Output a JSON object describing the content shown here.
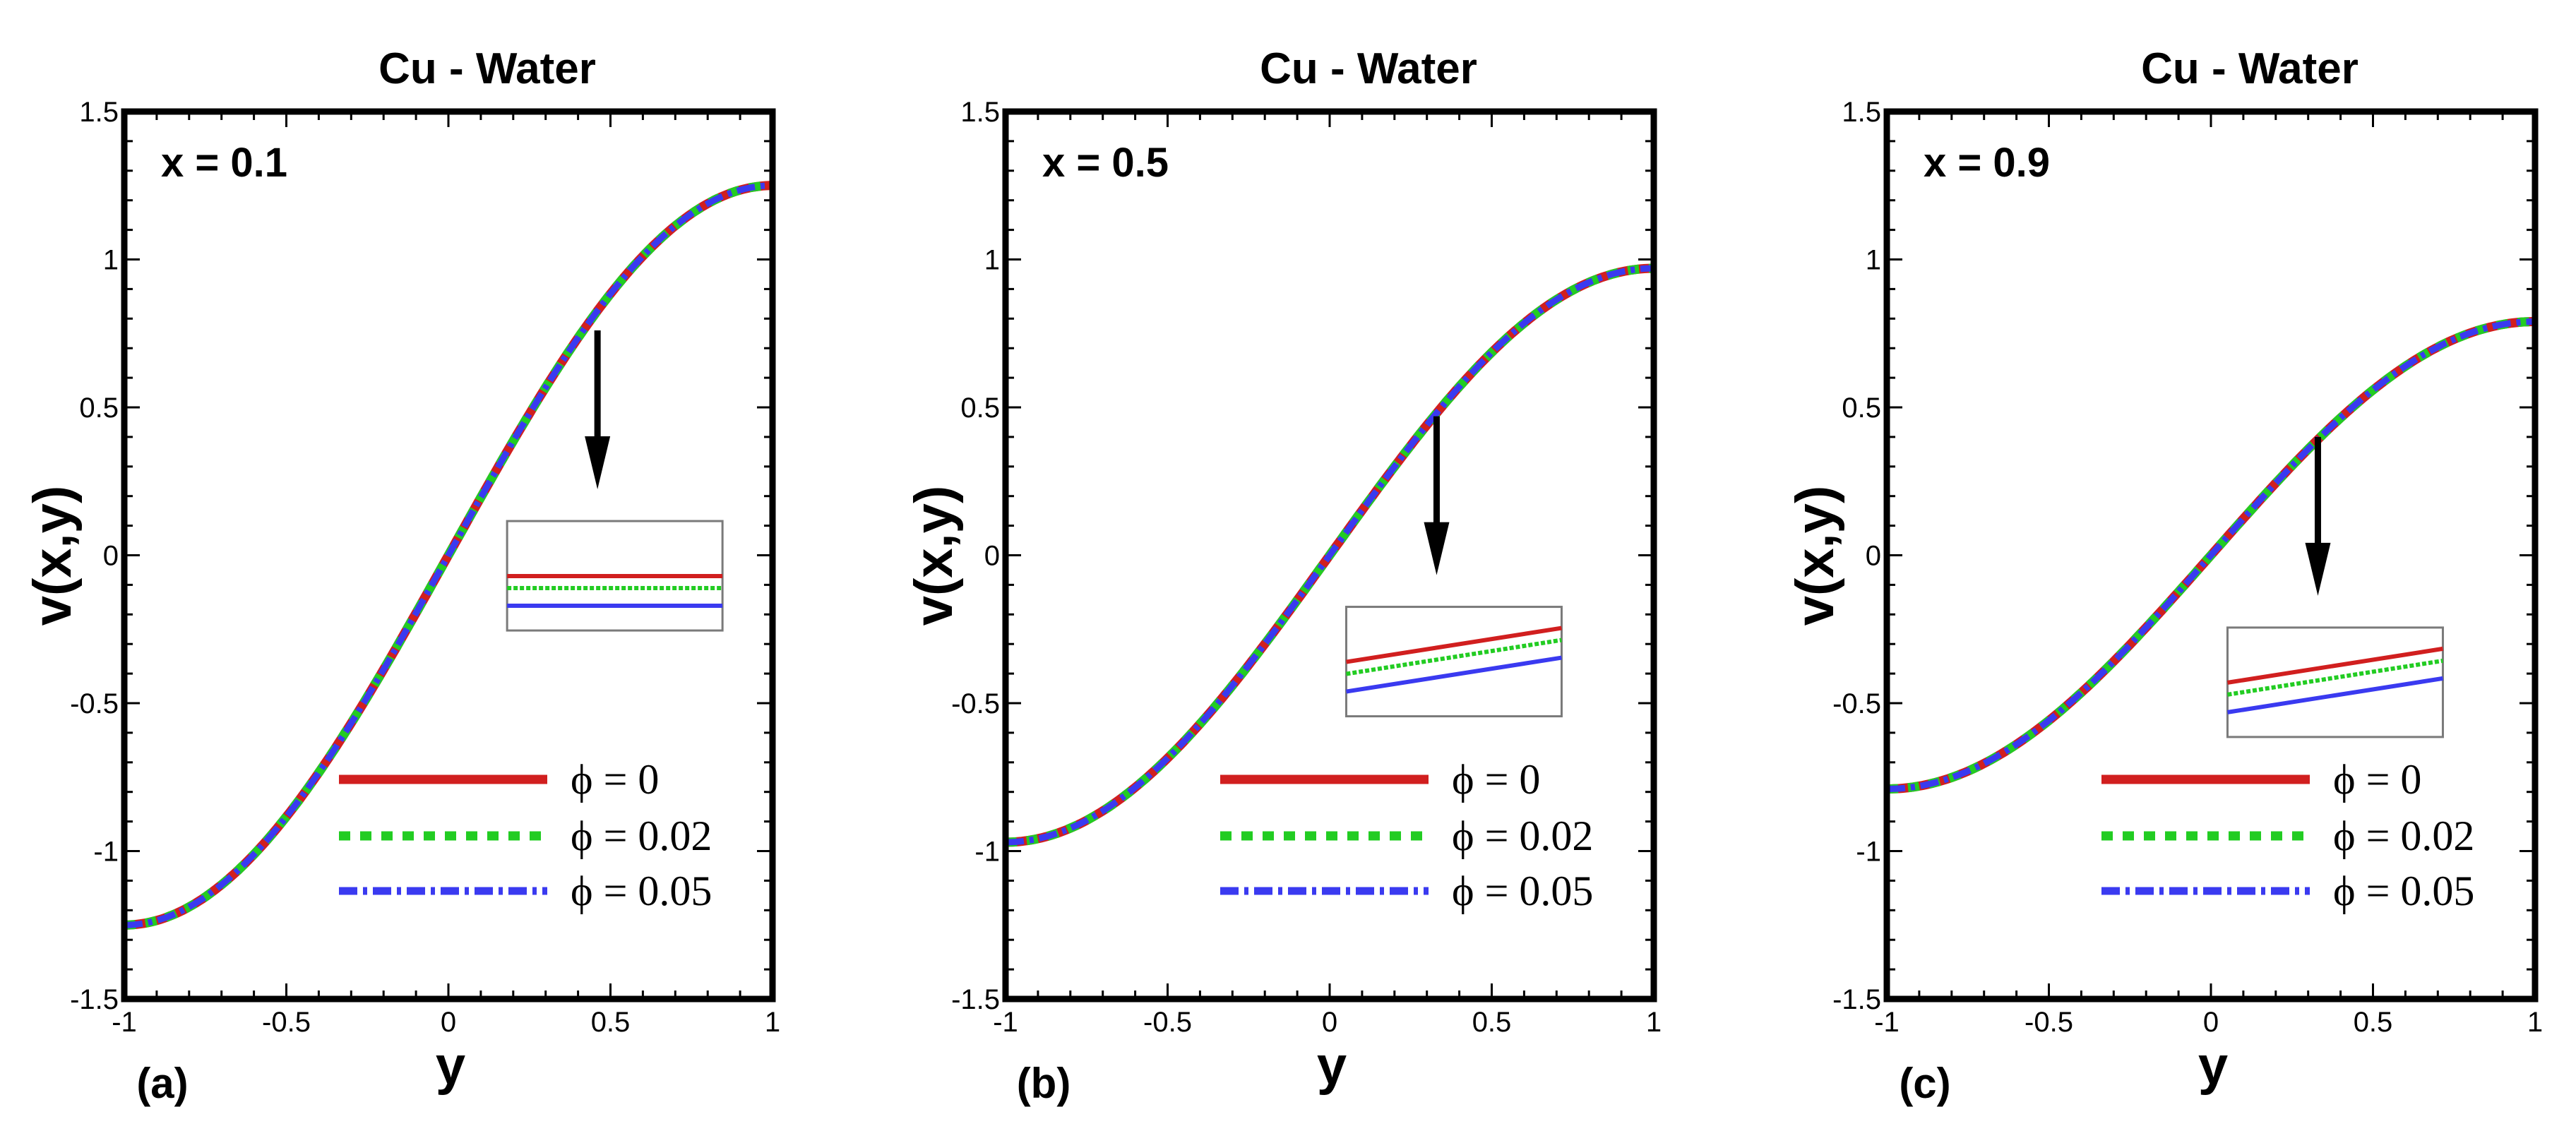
{
  "colors": {
    "phi_0": "#d11f1f",
    "phi_0_02": "#22cc22",
    "phi_0_05": "#3a3af0",
    "axis": "#000000",
    "inset_border": "#7a7a7a"
  },
  "chart_data": [
    {
      "type": "line",
      "title": "Cu - Water",
      "panel_label": "(a)",
      "annotation": "x = 0.1",
      "xlabel": "y",
      "ylabel": "v(x,y)",
      "xlim": [
        -1,
        1
      ],
      "ylim": [
        -1.5,
        1.5
      ],
      "x_ticks": [
        "-1",
        "-0.5",
        "0",
        "0.5",
        "1"
      ],
      "y_ticks": [
        "1.5",
        "1",
        "0.5",
        "0",
        "-0.5",
        "-1",
        "-1.5"
      ],
      "x_tick_values": [
        -1,
        -0.5,
        0,
        0.5,
        1
      ],
      "y_tick_values": [
        1.5,
        1,
        0.5,
        0,
        -0.5,
        -1,
        -1.5
      ],
      "amplitude": 1.25,
      "series": [
        {
          "name": "ϕ = 0",
          "x": [
            -1,
            -0.5,
            0,
            0.5,
            1
          ],
          "values": [
            -1.25,
            -0.88,
            0.0,
            0.88,
            1.25
          ]
        },
        {
          "name": "ϕ = 0.02",
          "x": [
            -1,
            -0.5,
            0,
            0.5,
            1
          ],
          "values": [
            -1.25,
            -0.88,
            0.0,
            0.88,
            1.25
          ]
        },
        {
          "name": "ϕ = 0.05",
          "x": [
            -1,
            -0.5,
            0,
            0.5,
            1
          ],
          "values": [
            -1.25,
            -0.88,
            0.0,
            0.88,
            1.25
          ]
        }
      ],
      "zoom_point": {
        "x": 0.46,
        "y": 0.76
      },
      "legend_position": "bottom-right"
    },
    {
      "type": "line",
      "title": "Cu - Water",
      "panel_label": "(b)",
      "annotation": "x = 0.5",
      "xlabel": "y",
      "ylabel": "v(x,y)",
      "xlim": [
        -1,
        1
      ],
      "ylim": [
        -1.5,
        1.5
      ],
      "x_ticks": [
        "-1",
        "-0.5",
        "0",
        "0.5",
        "1"
      ],
      "y_ticks": [
        "1.5",
        "1",
        "0.5",
        "0",
        "-0.5",
        "-1",
        "-1.5"
      ],
      "x_tick_values": [
        -1,
        -0.5,
        0,
        0.5,
        1
      ],
      "y_tick_values": [
        1.5,
        1,
        0.5,
        0,
        -0.5,
        -1,
        -1.5
      ],
      "amplitude": 0.97,
      "series": [
        {
          "name": "ϕ = 0",
          "x": [
            -1,
            -0.5,
            0,
            0.5,
            1
          ],
          "values": [
            -0.97,
            -0.69,
            0.0,
            0.69,
            0.97
          ]
        },
        {
          "name": "ϕ = 0.02",
          "x": [
            -1,
            -0.5,
            0,
            0.5,
            1
          ],
          "values": [
            -0.97,
            -0.69,
            0.0,
            0.69,
            0.97
          ]
        },
        {
          "name": "ϕ = 0.05",
          "x": [
            -1,
            -0.5,
            0,
            0.5,
            1
          ],
          "values": [
            -0.97,
            -0.69,
            0.0,
            0.69,
            0.97
          ]
        }
      ],
      "zoom_point": {
        "x": 0.33,
        "y": 0.47
      },
      "legend_position": "bottom-right"
    },
    {
      "type": "line",
      "title": "Cu - Water",
      "panel_label": "(c)",
      "annotation": "x = 0.9",
      "xlabel": "y",
      "ylabel": "v(x,y)",
      "xlim": [
        -1,
        1
      ],
      "ylim": [
        -1.5,
        1.5
      ],
      "x_ticks": [
        "-1",
        "-0.5",
        "0",
        "0.5",
        "1"
      ],
      "y_ticks": [
        "1.5",
        "1",
        "0.5",
        "0",
        "-0.5",
        "-1",
        "-1.5"
      ],
      "x_tick_values": [
        -1,
        -0.5,
        0,
        0.5,
        1
      ],
      "y_tick_values": [
        1.5,
        1,
        0.5,
        0,
        -0.5,
        -1,
        -1.5
      ],
      "amplitude": 0.79,
      "series": [
        {
          "name": "ϕ = 0",
          "x": [
            -1,
            -0.5,
            0,
            0.5,
            1
          ],
          "values": [
            -0.79,
            -0.56,
            0.0,
            0.56,
            0.79
          ]
        },
        {
          "name": "ϕ = 0.02",
          "x": [
            -1,
            -0.5,
            0,
            0.5,
            1
          ],
          "values": [
            -0.79,
            -0.56,
            0.0,
            0.56,
            0.79
          ]
        },
        {
          "name": "ϕ = 0.05",
          "x": [
            -1,
            -0.5,
            0,
            0.5,
            1
          ],
          "values": [
            -0.79,
            -0.56,
            0.0,
            0.56,
            0.79
          ]
        }
      ],
      "zoom_point": {
        "x": 0.33,
        "y": 0.4
      },
      "legend_position": "bottom-right"
    }
  ]
}
